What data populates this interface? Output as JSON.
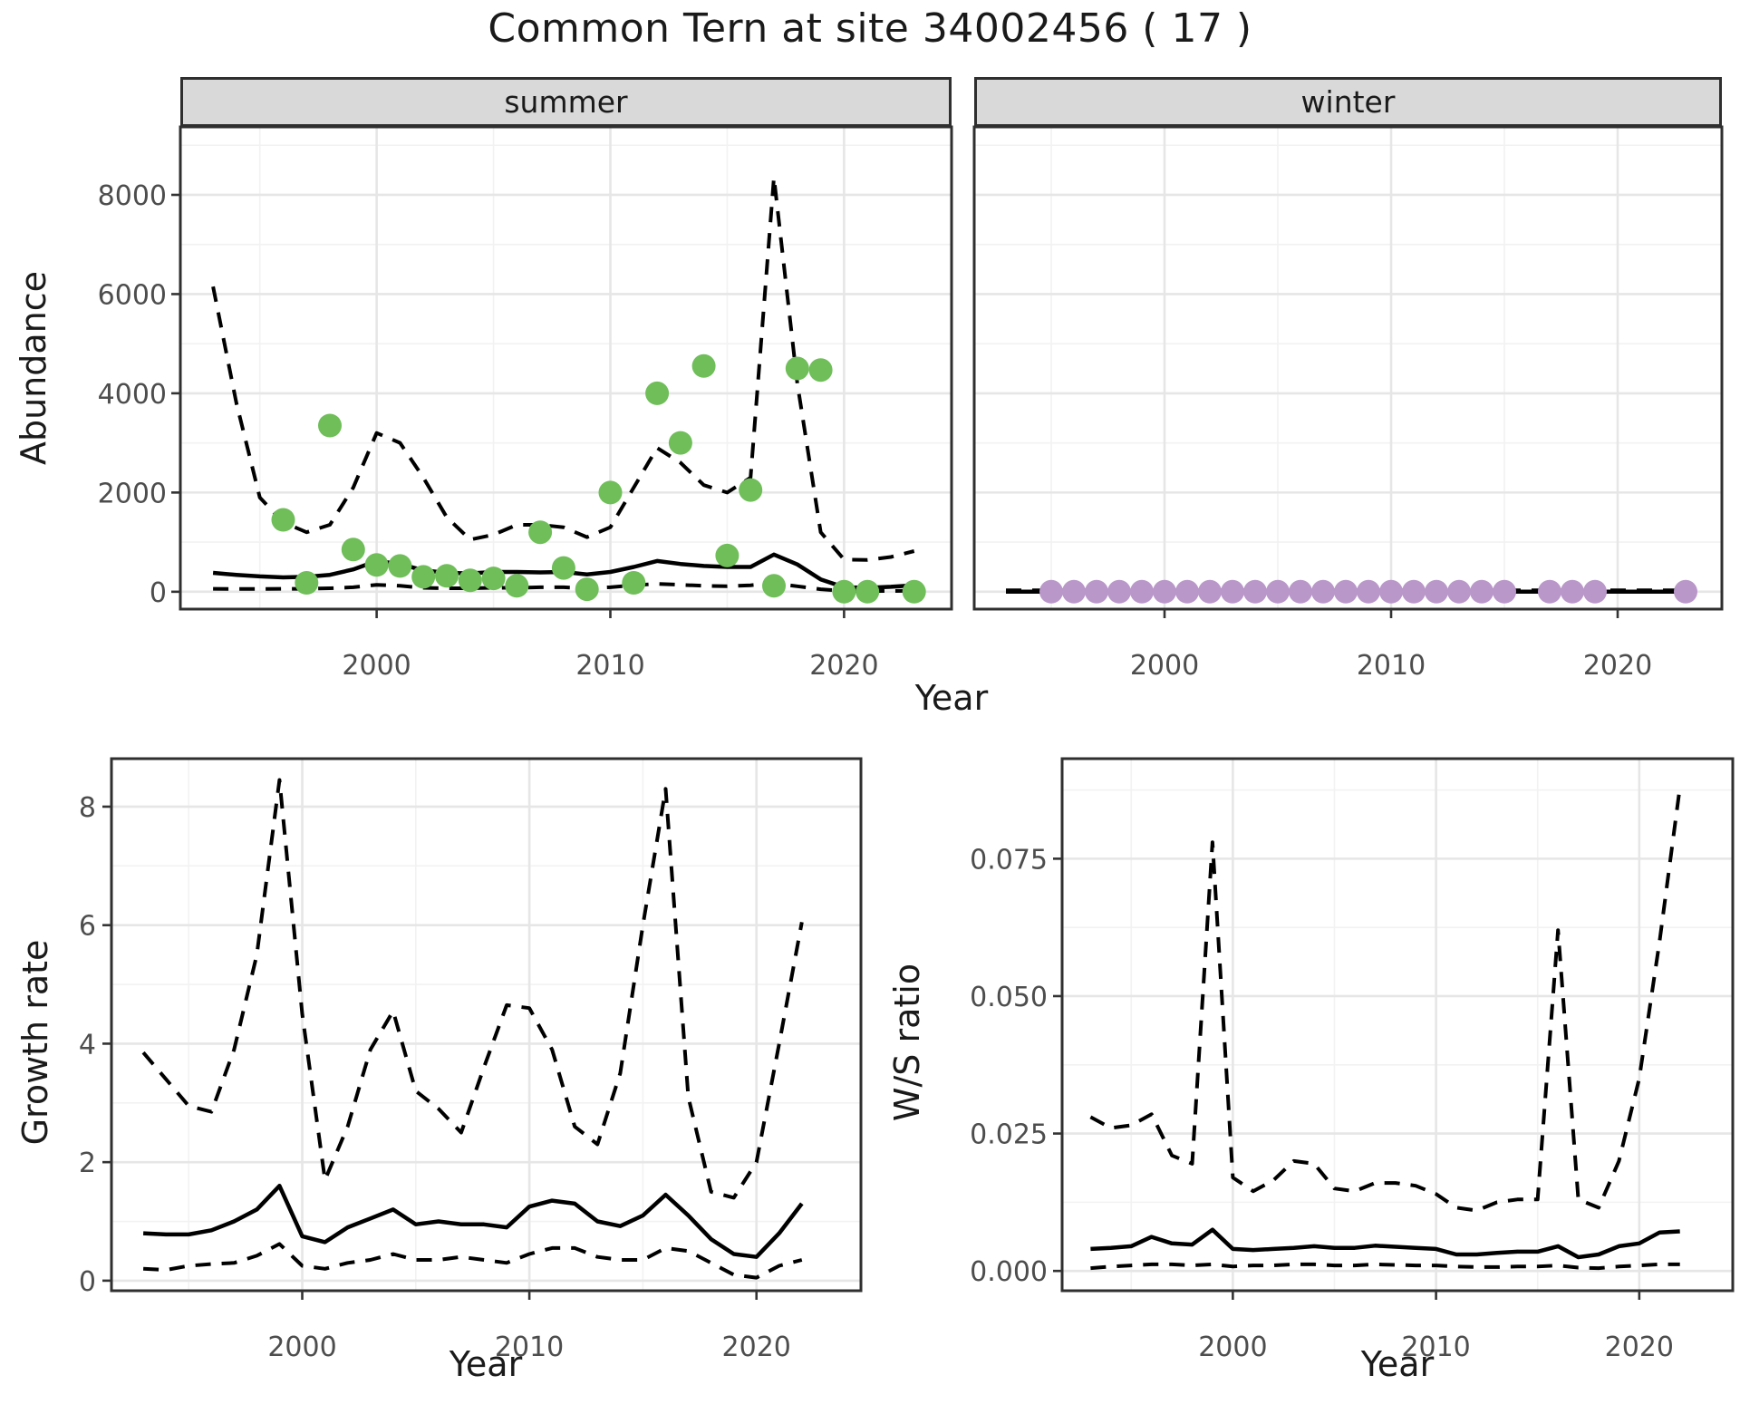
{
  "title": "Common Tern at site 34002456 ( 17 )",
  "facets": {
    "summer": "summer",
    "winter": "winter"
  },
  "axis_titles": {
    "abundance": "Abundance",
    "growth": "Growth rate",
    "ws": "W/S ratio",
    "year": "Year"
  },
  "colors": {
    "summer_point": "#6FBE59",
    "winter_point": "#B997C9",
    "line": "#000000",
    "grid_major": "#E6E6E6",
    "grid_minor": "#F2F2F2",
    "panel_border": "#2F2F2F",
    "tick": "#333333",
    "tick_label": "#4D4D4D",
    "strip_bg": "#D9D9D9"
  },
  "chart_data": [
    {
      "id": "abundance_summer",
      "type": "line",
      "facet_label": "summer",
      "xlabel": "Year",
      "ylabel": "Abundance",
      "xlim": [
        1991.6,
        2024.6
      ],
      "ylim": [
        -350,
        9370
      ],
      "x_major_ticks": [
        2000,
        2010,
        2020
      ],
      "x_tick_labels": [
        "2000",
        "2010",
        "2020"
      ],
      "x_minor_ticks": [
        1995,
        2005,
        2015
      ],
      "y_major_ticks": [
        0,
        2000,
        4000,
        6000,
        8000
      ],
      "y_tick_labels": [
        "0",
        "2000",
        "4000",
        "6000",
        "8000"
      ],
      "y_minor_ticks": [
        1000,
        3000,
        5000,
        7000,
        9000
      ],
      "years": [
        1993,
        1994,
        1995,
        1996,
        1997,
        1998,
        1999,
        2000,
        2001,
        2002,
        2003,
        2004,
        2005,
        2006,
        2007,
        2008,
        2009,
        2010,
        2011,
        2012,
        2013,
        2014,
        2015,
        2016,
        2017,
        2018,
        2019,
        2020,
        2021,
        2022,
        2023
      ],
      "series": [
        {
          "name": "median-fit",
          "style": "solid",
          "values": [
            380,
            340,
            310,
            290,
            300,
            340,
            450,
            620,
            560,
            430,
            380,
            370,
            400,
            400,
            390,
            400,
            350,
            400,
            500,
            620,
            560,
            520,
            500,
            500,
            750,
            550,
            250,
            90,
            80,
            100,
            130
          ]
        },
        {
          "name": "upper-95ci",
          "style": "dashed",
          "values": [
            6150,
            3800,
            1900,
            1400,
            1200,
            1350,
            2100,
            3200,
            3000,
            2300,
            1500,
            1050,
            1150,
            1350,
            1350,
            1300,
            1100,
            1300,
            2100,
            2900,
            2600,
            2150,
            2000,
            2300,
            8350,
            4200,
            1200,
            650,
            640,
            700,
            820
          ]
        },
        {
          "name": "lower-95ci",
          "style": "dashed",
          "values": [
            60,
            55,
            55,
            60,
            60,
            70,
            90,
            140,
            120,
            80,
            70,
            70,
            80,
            80,
            90,
            90,
            70,
            90,
            130,
            160,
            140,
            120,
            110,
            130,
            170,
            110,
            50,
            15,
            12,
            15,
            20
          ]
        }
      ],
      "points": {
        "color_key": "summer_point",
        "data": [
          [
            1996,
            1450
          ],
          [
            1997,
            180
          ],
          [
            1998,
            3350
          ],
          [
            1999,
            850
          ],
          [
            2000,
            540
          ],
          [
            2001,
            520
          ],
          [
            2002,
            300
          ],
          [
            2003,
            320
          ],
          [
            2004,
            230
          ],
          [
            2005,
            270
          ],
          [
            2006,
            120
          ],
          [
            2007,
            1200
          ],
          [
            2008,
            480
          ],
          [
            2009,
            50
          ],
          [
            2010,
            2000
          ],
          [
            2011,
            180
          ],
          [
            2012,
            4000
          ],
          [
            2013,
            3000
          ],
          [
            2014,
            4550
          ],
          [
            2015,
            730
          ],
          [
            2016,
            2050
          ],
          [
            2017,
            120
          ],
          [
            2018,
            4500
          ],
          [
            2019,
            4470
          ],
          [
            2020,
            0
          ],
          [
            2021,
            0
          ],
          [
            2023,
            0
          ]
        ]
      }
    },
    {
      "id": "abundance_winter",
      "type": "line",
      "facet_label": "winter",
      "xlabel": "Year",
      "ylabel": "",
      "xlim": [
        1991.6,
        2024.6
      ],
      "ylim": [
        -350,
        9370
      ],
      "x_major_ticks": [
        2000,
        2010,
        2020
      ],
      "x_tick_labels": [
        "2000",
        "2010",
        "2020"
      ],
      "x_minor_ticks": [
        1995,
        2005,
        2015
      ],
      "y_major_ticks": [
        0,
        2000,
        4000,
        6000,
        8000
      ],
      "y_tick_labels": [],
      "y_minor_ticks": [
        1000,
        3000,
        5000,
        7000,
        9000
      ],
      "years": [
        1993,
        1994,
        1995,
        1996,
        1997,
        1998,
        1999,
        2000,
        2001,
        2002,
        2003,
        2004,
        2005,
        2006,
        2007,
        2008,
        2009,
        2010,
        2011,
        2012,
        2013,
        2014,
        2015,
        2016,
        2017,
        2018,
        2019,
        2020,
        2021,
        2022,
        2023
      ],
      "series": [
        {
          "name": "median-fit",
          "style": "solid",
          "values": [
            0,
            0,
            0,
            0,
            0,
            0,
            0,
            0,
            0,
            0,
            0,
            0,
            0,
            0,
            0,
            0,
            0,
            0,
            0,
            0,
            0,
            0,
            0,
            0,
            0,
            0,
            0,
            0,
            0,
            0,
            0
          ]
        },
        {
          "name": "upper-95ci",
          "style": "dashed",
          "values": [
            30,
            30,
            30,
            30,
            30,
            30,
            30,
            30,
            30,
            30,
            30,
            30,
            30,
            30,
            30,
            30,
            30,
            30,
            30,
            30,
            30,
            30,
            30,
            30,
            30,
            30,
            30,
            30,
            30,
            30,
            30
          ]
        },
        {
          "name": "lower-95ci",
          "style": "dashed",
          "values": [
            0,
            0,
            0,
            0,
            0,
            0,
            0,
            0,
            0,
            0,
            0,
            0,
            0,
            0,
            0,
            0,
            0,
            0,
            0,
            0,
            0,
            0,
            0,
            0,
            0,
            0,
            0,
            0,
            0,
            0,
            0
          ]
        }
      ],
      "points": {
        "color_key": "winter_point",
        "data": [
          [
            1995,
            0
          ],
          [
            1996,
            0
          ],
          [
            1997,
            0
          ],
          [
            1998,
            0
          ],
          [
            1999,
            0
          ],
          [
            2000,
            0
          ],
          [
            2001,
            0
          ],
          [
            2002,
            0
          ],
          [
            2003,
            0
          ],
          [
            2004,
            0
          ],
          [
            2005,
            0
          ],
          [
            2006,
            0
          ],
          [
            2007,
            0
          ],
          [
            2008,
            0
          ],
          [
            2009,
            0
          ],
          [
            2010,
            0
          ],
          [
            2011,
            0
          ],
          [
            2012,
            0
          ],
          [
            2013,
            0
          ],
          [
            2014,
            0
          ],
          [
            2015,
            0
          ],
          [
            2017,
            0
          ],
          [
            2018,
            0
          ],
          [
            2019,
            0
          ],
          [
            2023,
            0
          ]
        ]
      }
    },
    {
      "id": "growth",
      "type": "line",
      "facet_label": "",
      "xlabel": "Year",
      "ylabel": "Growth rate",
      "xlim": [
        1991.6,
        2024.6
      ],
      "ylim": [
        -0.17,
        8.81
      ],
      "x_major_ticks": [
        2000,
        2010,
        2020
      ],
      "x_tick_labels": [
        "2000",
        "2010",
        "2020"
      ],
      "x_minor_ticks": [
        1995,
        2005,
        2015
      ],
      "y_major_ticks": [
        0,
        2,
        4,
        6,
        8
      ],
      "y_tick_labels": [
        "0",
        "2",
        "4",
        "6",
        "8"
      ],
      "y_minor_ticks": [
        1,
        3,
        5,
        7
      ],
      "years": [
        1993,
        1994,
        1995,
        1996,
        1997,
        1998,
        1999,
        2000,
        2001,
        2002,
        2003,
        2004,
        2005,
        2006,
        2007,
        2008,
        2009,
        2010,
        2011,
        2012,
        2013,
        2014,
        2015,
        2016,
        2017,
        2018,
        2019,
        2020,
        2021,
        2022
      ],
      "series": [
        {
          "name": "median-fit",
          "style": "solid",
          "values": [
            0.8,
            0.78,
            0.78,
            0.85,
            1.0,
            1.2,
            1.6,
            0.75,
            0.65,
            0.9,
            1.05,
            1.2,
            0.95,
            1.0,
            0.95,
            0.95,
            0.9,
            1.25,
            1.35,
            1.3,
            1.0,
            0.92,
            1.1,
            1.45,
            1.1,
            0.7,
            0.45,
            0.4,
            0.8,
            1.3
          ]
        },
        {
          "name": "upper-95ci",
          "style": "dashed",
          "values": [
            3.85,
            3.4,
            2.95,
            2.85,
            3.9,
            5.5,
            8.45,
            4.5,
            1.7,
            2.6,
            3.9,
            4.55,
            3.2,
            2.9,
            2.5,
            3.6,
            4.65,
            4.6,
            3.9,
            2.6,
            2.3,
            3.5,
            6.0,
            8.3,
            3.1,
            1.5,
            1.4,
            2.0,
            4.0,
            6.05
          ]
        },
        {
          "name": "lower-95ci",
          "style": "dashed",
          "values": [
            0.2,
            0.18,
            0.25,
            0.28,
            0.3,
            0.42,
            0.62,
            0.25,
            0.2,
            0.3,
            0.35,
            0.45,
            0.35,
            0.35,
            0.4,
            0.35,
            0.3,
            0.45,
            0.55,
            0.55,
            0.4,
            0.35,
            0.35,
            0.55,
            0.5,
            0.3,
            0.1,
            0.05,
            0.25,
            0.35
          ]
        }
      ],
      "points": {
        "color_key": "",
        "data": []
      }
    },
    {
      "id": "ws",
      "type": "line",
      "facet_label": "",
      "xlabel": "Year",
      "ylabel": "W/S ratio",
      "xlim": [
        1991.6,
        2024.6
      ],
      "ylim": [
        -0.0036,
        0.0932
      ],
      "x_major_ticks": [
        2000,
        2010,
        2020
      ],
      "x_tick_labels": [
        "2000",
        "2010",
        "2020"
      ],
      "x_minor_ticks": [
        1995,
        2005,
        2015
      ],
      "y_major_ticks": [
        0,
        0.025,
        0.05,
        0.075
      ],
      "y_tick_labels": [
        "0.000",
        "0.025",
        "0.050",
        "0.075"
      ],
      "y_minor_ticks": [
        0.0125,
        0.0375,
        0.0625,
        0.0875
      ],
      "years": [
        1993,
        1994,
        1995,
        1996,
        1997,
        1998,
        1999,
        2000,
        2001,
        2002,
        2003,
        2004,
        2005,
        2006,
        2007,
        2008,
        2009,
        2010,
        2011,
        2012,
        2013,
        2014,
        2015,
        2016,
        2017,
        2018,
        2019,
        2020,
        2021,
        2022
      ],
      "series": [
        {
          "name": "median-fit",
          "style": "solid",
          "values": [
            0.004,
            0.0042,
            0.0045,
            0.0062,
            0.005,
            0.0048,
            0.0075,
            0.004,
            0.0038,
            0.004,
            0.0042,
            0.0045,
            0.0042,
            0.0042,
            0.0046,
            0.0044,
            0.0042,
            0.004,
            0.003,
            0.003,
            0.0033,
            0.0035,
            0.0035,
            0.0045,
            0.0025,
            0.003,
            0.0045,
            0.005,
            0.007,
            0.0072
          ]
        },
        {
          "name": "upper-95ci",
          "style": "dashed",
          "values": [
            0.028,
            0.026,
            0.0265,
            0.0285,
            0.021,
            0.0195,
            0.078,
            0.017,
            0.0145,
            0.0165,
            0.02,
            0.0195,
            0.015,
            0.0145,
            0.016,
            0.016,
            0.0155,
            0.014,
            0.0115,
            0.011,
            0.0125,
            0.013,
            0.013,
            0.062,
            0.013,
            0.0115,
            0.02,
            0.035,
            0.06,
            0.088
          ]
        },
        {
          "name": "lower-95ci",
          "style": "dashed",
          "values": [
            0.0005,
            0.0008,
            0.001,
            0.0012,
            0.0012,
            0.001,
            0.0012,
            0.0008,
            0.001,
            0.001,
            0.0012,
            0.0012,
            0.001,
            0.001,
            0.0012,
            0.0011,
            0.001,
            0.001,
            0.0008,
            0.0007,
            0.0007,
            0.0008,
            0.0008,
            0.001,
            0.0006,
            0.0005,
            0.0008,
            0.001,
            0.0012,
            0.0012
          ]
        }
      ],
      "points": {
        "color_key": "",
        "data": []
      }
    }
  ]
}
